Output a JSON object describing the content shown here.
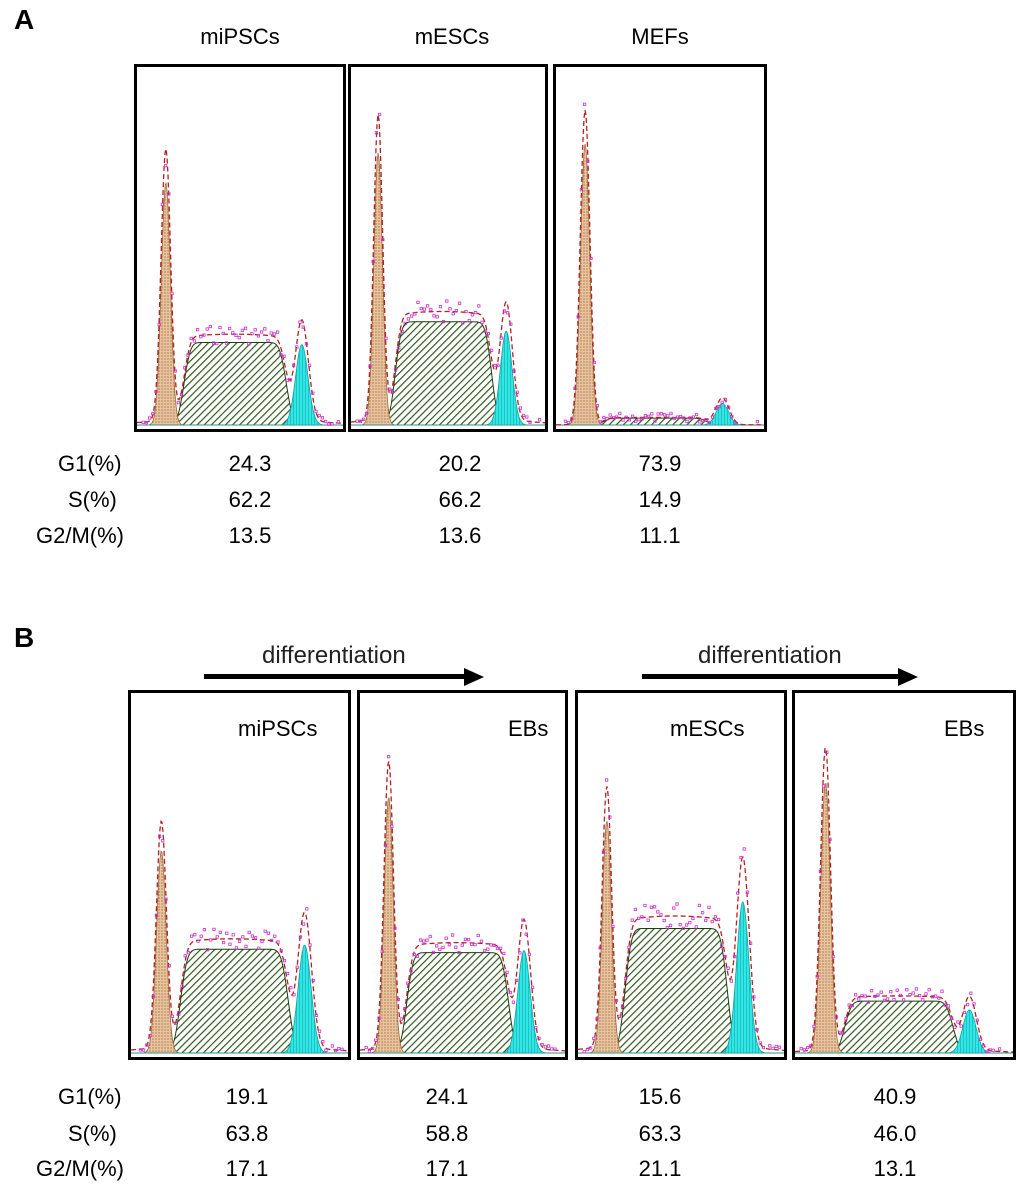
{
  "panel_a": {
    "letter": "A",
    "rows": [
      "G1(%)",
      "S(%)",
      "G2/M(%)"
    ]
  },
  "panel_b": {
    "letter": "B",
    "arrow_label": "differentiation",
    "rows": [
      "G1(%)",
      "S(%)",
      "G2/M(%)"
    ]
  },
  "colors": {
    "g1_fill": "#e8c39e",
    "s_fill": "#2f5a1f",
    "g2m_fill": "#2ee8e8",
    "fit_line": "#b22222",
    "dots": "#cc33cc"
  },
  "chart_data": [
    {
      "type": "histogram",
      "panel": "A",
      "title": "miPSCs",
      "legend": [
        "G1",
        "S",
        "G2/M"
      ],
      "g1": 24.3,
      "s": 62.2,
      "g2m": 13.5,
      "model": {
        "g1_peak": 0.82,
        "s_plateau": 0.24,
        "g2m_peak": 0.3
      }
    },
    {
      "type": "histogram",
      "panel": "A",
      "title": "mESCs",
      "legend": [
        "G1",
        "S",
        "G2/M"
      ],
      "g1": 20.2,
      "s": 66.2,
      "g2m": 13.6,
      "model": {
        "g1_peak": 0.92,
        "s_plateau": 0.3,
        "g2m_peak": 0.35
      }
    },
    {
      "type": "histogram",
      "panel": "A",
      "title": "MEFs",
      "legend": [
        "G1",
        "S",
        "G2/M"
      ],
      "g1": 73.9,
      "s": 14.9,
      "g2m": 11.1,
      "model": {
        "g1_peak": 0.95,
        "s_plateau": 0.02,
        "g2m_peak": 0.08
      }
    },
    {
      "type": "histogram",
      "panel": "B",
      "title": "miPSCs",
      "legend": [
        "G1",
        "S",
        "G2/M"
      ],
      "g1": 19.1,
      "s": 63.8,
      "g2m": 17.1,
      "model": {
        "g1_peak": 0.68,
        "s_plateau": 0.3,
        "g2m_peak": 0.4
      }
    },
    {
      "type": "histogram",
      "panel": "B",
      "title": "EBs",
      "legend": [
        "G1",
        "S",
        "G2/M"
      ],
      "g1": 24.1,
      "s": 58.8,
      "g2m": 17.1,
      "model": {
        "g1_peak": 0.86,
        "s_plateau": 0.29,
        "g2m_peak": 0.38
      }
    },
    {
      "type": "histogram",
      "panel": "B",
      "title": "mESCs",
      "legend": [
        "G1",
        "S",
        "G2/M"
      ],
      "g1": 15.6,
      "s": 63.3,
      "g2m": 21.1,
      "model": {
        "g1_peak": 0.78,
        "s_plateau": 0.36,
        "g2m_peak": 0.56
      }
    },
    {
      "type": "histogram",
      "panel": "B",
      "title": "EBs",
      "legend": [
        "G1",
        "S",
        "G2/M"
      ],
      "g1": 40.9,
      "s": 46.0,
      "g2m": 13.1,
      "model": {
        "g1_peak": 0.91,
        "s_plateau": 0.15,
        "g2m_peak": 0.16
      }
    }
  ]
}
